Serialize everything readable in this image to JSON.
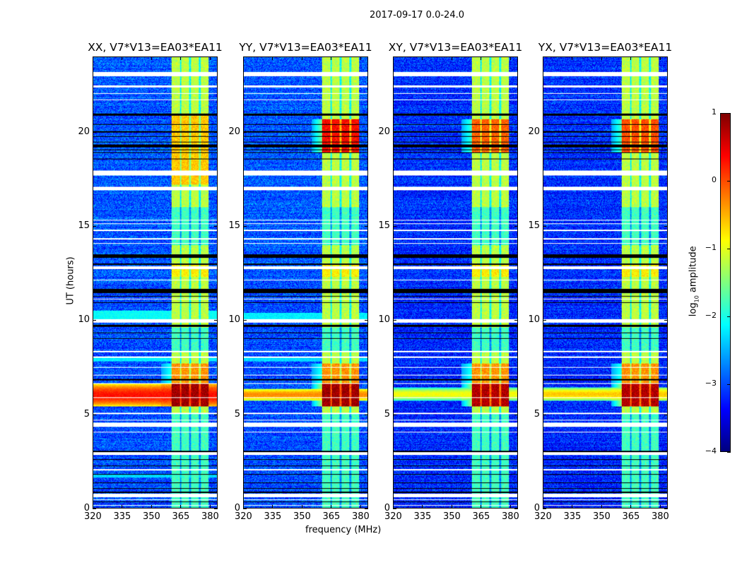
{
  "chart_data": {
    "type": "heatmap",
    "suptitle": "2017-09-17 0.0-24.0",
    "xlabel": "frequency (MHz)",
    "ylabel": "UT (hours)",
    "xlim": [
      320,
      384
    ],
    "ylim": [
      0,
      24
    ],
    "xticks": [
      320,
      335,
      350,
      365,
      380
    ],
    "yticks": [
      0,
      5,
      10,
      15,
      20
    ],
    "colormap": "jet",
    "colorbar": {
      "label_prefix": "log",
      "label_sub": "10",
      "label_suffix": " amplitude",
      "range": [
        -4,
        1
      ],
      "ticks": [
        "1",
        "0",
        "−1",
        "−2",
        "−3",
        "−4"
      ]
    },
    "subbands_mhz": [
      [
        360.5,
        364.8
      ],
      [
        365.6,
        369.5
      ],
      [
        370.6,
        374.6
      ],
      [
        375.7,
        379.7
      ]
    ],
    "flagged_white_hours": [
      [
        23.0,
        23.2
      ],
      [
        22.4,
        22.5
      ],
      [
        22.05,
        22.1
      ],
      [
        21.7,
        21.75
      ],
      [
        17.7,
        17.95
      ],
      [
        16.9,
        17.1
      ],
      [
        15.3,
        15.35
      ],
      [
        15.1,
        15.15
      ],
      [
        14.75,
        14.8
      ],
      [
        14.3,
        14.35
      ],
      [
        14.05,
        14.1
      ],
      [
        12.7,
        12.85
      ],
      [
        12.1,
        12.15
      ],
      [
        11.1,
        11.15
      ],
      [
        9.85,
        10.05
      ],
      [
        8.3,
        8.35
      ],
      [
        8.0,
        8.05
      ],
      [
        7.45,
        7.5
      ],
      [
        7.05,
        7.1
      ],
      [
        6.6,
        6.65
      ],
      [
        5.85,
        5.9
      ],
      [
        5.0,
        5.05
      ],
      [
        4.65,
        4.7
      ],
      [
        4.3,
        4.55
      ],
      [
        4.0,
        4.05
      ],
      [
        2.8,
        2.95
      ],
      [
        2.0,
        2.05
      ],
      [
        0.55,
        0.75
      ],
      [
        0.4,
        0.45
      ],
      [
        0.1,
        0.15
      ]
    ],
    "flagged_black_hours": [
      [
        20.9,
        21.0
      ],
      [
        20.4,
        20.45
      ],
      [
        20.0,
        20.05
      ],
      [
        19.75,
        19.8
      ],
      [
        19.45,
        19.5
      ],
      [
        19.2,
        19.35
      ],
      [
        19.05,
        19.1
      ],
      [
        18.9,
        18.95
      ],
      [
        18.55,
        18.6
      ],
      [
        13.3,
        13.5
      ],
      [
        12.95,
        13.0
      ],
      [
        11.45,
        11.65
      ],
      [
        11.25,
        11.3
      ],
      [
        10.9,
        10.95
      ],
      [
        9.65,
        9.75
      ],
      [
        9.3,
        9.35
      ],
      [
        9.0,
        9.05
      ],
      [
        6.8,
        6.85
      ],
      [
        2.95,
        3.05
      ],
      [
        2.55,
        2.6
      ],
      [
        2.2,
        2.25
      ],
      [
        1.75,
        1.8
      ],
      [
        1.3,
        1.35
      ],
      [
        1.0,
        1.05
      ],
      [
        0.8,
        0.85
      ],
      [
        0.3,
        0.35
      ]
    ],
    "panels": [
      {
        "title": "XX, V7*V13=EA03*EA11",
        "background": -3.0,
        "rfi_band": {
          "hours": [
            5.4,
            6.6
          ],
          "peak": 0.3
        },
        "subband_peak": 0.85,
        "subband_high_hours": [
          17.2,
          21.0
        ],
        "subband_high": -0.6,
        "bright_strips": [
          [
            10.05,
            10.5,
            -2.1
          ],
          [
            7.8,
            8.0,
            -2.2
          ],
          [
            1.6,
            1.75,
            -2.3
          ]
        ]
      },
      {
        "title": "YY, V7*V13=EA03*EA11",
        "background": -3.0,
        "rfi_band": {
          "hours": [
            5.7,
            6.35
          ],
          "peak": -0.3
        },
        "subband_peak": 0.85,
        "subband_high_hours": [
          18.9,
          20.7
        ],
        "subband_high": 0.35,
        "bright_strips": [
          [
            10.05,
            10.4,
            -2.2
          ],
          [
            7.8,
            8.0,
            -2.3
          ]
        ]
      },
      {
        "title": "XY, V7*V13=EA03*EA11",
        "background": -3.2,
        "rfi_band": {
          "hours": [
            5.7,
            6.4
          ],
          "peak": -0.9
        },
        "subband_peak": 0.75,
        "subband_high_hours": [
          18.9,
          20.7
        ],
        "subband_high": -0.1,
        "bright_strips": []
      },
      {
        "title": "YX, V7*V13=EA03*EA11",
        "background": -3.2,
        "rfi_band": {
          "hours": [
            5.7,
            6.4
          ],
          "peak": -0.6
        },
        "subband_peak": 0.75,
        "subband_high_hours": [
          18.9,
          20.7
        ],
        "subband_high": 0.0,
        "bright_strips": []
      }
    ]
  }
}
